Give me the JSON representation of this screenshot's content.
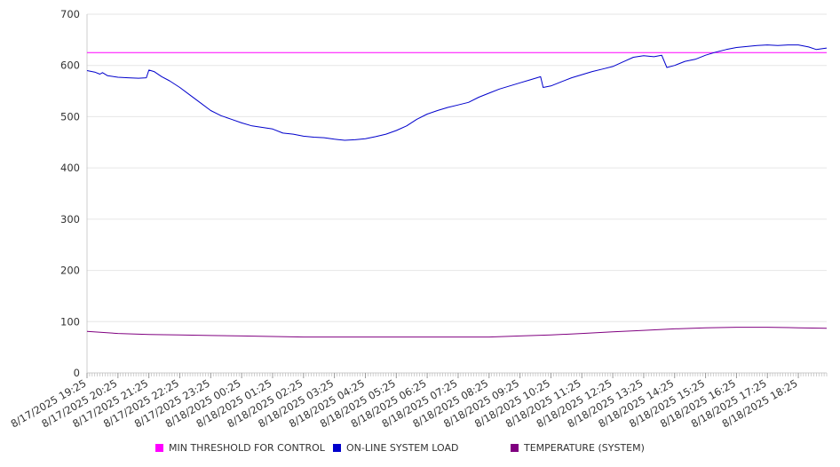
{
  "chart_data": {
    "type": "line",
    "ylim": [
      0,
      700
    ],
    "yticks": [
      0,
      100,
      200,
      300,
      400,
      500,
      600,
      700
    ],
    "grid": true,
    "legend_position": "bottom",
    "xlabel": "",
    "ylabel": "",
    "x_tick_labels": [
      "8/17/2025 19:25",
      "8/17/2025 20:25",
      "8/17/2025 21:25",
      "8/17/2025 22:25",
      "8/17/2025 23:25",
      "8/18/2025 00:25",
      "8/18/2025 01:25",
      "8/18/2025 02:25",
      "8/18/2025 03:25",
      "8/18/2025 04:25",
      "8/18/2025 05:25",
      "8/18/2025 06:25",
      "8/18/2025 07:25",
      "8/18/2025 08:25",
      "8/18/2025 09:25",
      "8/18/2025 10:25",
      "8/18/2025 11:25",
      "8/18/2025 12:25",
      "8/18/2025 13:25",
      "8/18/2025 14:25",
      "8/18/2025 15:25",
      "8/18/2025 16:25",
      "8/18/2025 17:25",
      "8/18/2025 18:25"
    ],
    "x_end": "8/18/2025 19:20",
    "series": [
      {
        "name": "MIN THRESHOLD FOR CONTROL",
        "color": "#ff00ff",
        "points": [
          [
            "8/17/2025 19:25",
            625
          ],
          [
            "8/18/2025 19:20",
            625
          ]
        ]
      },
      {
        "name": "ON-LINE SYSTEM LOAD",
        "color": "#0000cc",
        "points": [
          [
            "8/17/2025 19:25",
            590
          ],
          [
            "8/17/2025 19:40",
            587
          ],
          [
            "8/17/2025 19:50",
            583
          ],
          [
            "8/17/2025 19:55",
            586
          ],
          [
            "8/17/2025 20:05",
            580
          ],
          [
            "8/17/2025 20:25",
            577
          ],
          [
            "8/17/2025 20:45",
            576
          ],
          [
            "8/17/2025 21:05",
            575
          ],
          [
            "8/17/2025 21:20",
            576
          ],
          [
            "8/17/2025 21:25",
            591
          ],
          [
            "8/17/2025 21:35",
            588
          ],
          [
            "8/17/2025 21:50",
            578
          ],
          [
            "8/17/2025 22:05",
            570
          ],
          [
            "8/17/2025 22:25",
            557
          ],
          [
            "8/17/2025 22:45",
            542
          ],
          [
            "8/17/2025 23:05",
            527
          ],
          [
            "8/17/2025 23:25",
            512
          ],
          [
            "8/17/2025 23:45",
            502
          ],
          [
            "8/18/2025 00:05",
            495
          ],
          [
            "8/18/2025 00:25",
            488
          ],
          [
            "8/18/2025 00:45",
            482
          ],
          [
            "8/18/2025 01:05",
            479
          ],
          [
            "8/18/2025 01:25",
            476
          ],
          [
            "8/18/2025 01:45",
            468
          ],
          [
            "8/18/2025 02:05",
            466
          ],
          [
            "8/18/2025 02:25",
            462
          ],
          [
            "8/18/2025 02:45",
            460
          ],
          [
            "8/18/2025 03:05",
            459
          ],
          [
            "8/18/2025 03:25",
            456
          ],
          [
            "8/18/2025 03:45",
            454
          ],
          [
            "8/18/2025 04:05",
            455
          ],
          [
            "8/18/2025 04:25",
            457
          ],
          [
            "8/18/2025 04:45",
            461
          ],
          [
            "8/18/2025 05:05",
            466
          ],
          [
            "8/18/2025 05:25",
            473
          ],
          [
            "8/18/2025 05:45",
            482
          ],
          [
            "8/18/2025 06:05",
            495
          ],
          [
            "8/18/2025 06:25",
            505
          ],
          [
            "8/18/2025 06:45",
            512
          ],
          [
            "8/18/2025 07:05",
            518
          ],
          [
            "8/18/2025 07:25",
            523
          ],
          [
            "8/18/2025 07:45",
            528
          ],
          [
            "8/18/2025 08:05",
            538
          ],
          [
            "8/18/2025 08:25",
            546
          ],
          [
            "8/18/2025 08:45",
            554
          ],
          [
            "8/18/2025 09:05",
            560
          ],
          [
            "8/18/2025 09:25",
            566
          ],
          [
            "8/18/2025 09:45",
            572
          ],
          [
            "8/18/2025 10:05",
            578
          ],
          [
            "8/18/2025 10:10",
            557
          ],
          [
            "8/18/2025 10:25",
            560
          ],
          [
            "8/18/2025 10:45",
            568
          ],
          [
            "8/18/2025 11:05",
            576
          ],
          [
            "8/18/2025 11:25",
            582
          ],
          [
            "8/18/2025 11:45",
            588
          ],
          [
            "8/18/2025 12:05",
            593
          ],
          [
            "8/18/2025 12:25",
            598
          ],
          [
            "8/18/2025 12:45",
            607
          ],
          [
            "8/18/2025 13:05",
            616
          ],
          [
            "8/18/2025 13:25",
            619
          ],
          [
            "8/18/2025 13:45",
            617
          ],
          [
            "8/18/2025 14:00",
            620
          ],
          [
            "8/18/2025 14:10",
            596
          ],
          [
            "8/18/2025 14:25",
            600
          ],
          [
            "8/18/2025 14:45",
            608
          ],
          [
            "8/18/2025 15:05",
            612
          ],
          [
            "8/18/2025 15:25",
            620
          ],
          [
            "8/18/2025 15:45",
            626
          ],
          [
            "8/18/2025 16:05",
            631
          ],
          [
            "8/18/2025 16:25",
            635
          ],
          [
            "8/18/2025 16:45",
            637
          ],
          [
            "8/18/2025 17:05",
            639
          ],
          [
            "8/18/2025 17:25",
            640
          ],
          [
            "8/18/2025 17:45",
            639
          ],
          [
            "8/18/2025 18:05",
            640
          ],
          [
            "8/18/2025 18:25",
            640
          ],
          [
            "8/18/2025 18:45",
            636
          ],
          [
            "8/18/2025 19:00",
            631
          ],
          [
            "8/18/2025 19:20",
            634
          ]
        ]
      },
      {
        "name": "TEMPERATURE (SYSTEM)",
        "color": "#800080",
        "points": [
          [
            "8/17/2025 19:25",
            81
          ],
          [
            "8/17/2025 20:25",
            77
          ],
          [
            "8/17/2025 21:25",
            75
          ],
          [
            "8/17/2025 22:25",
            74
          ],
          [
            "8/17/2025 23:25",
            73
          ],
          [
            "8/18/2025 00:25",
            72
          ],
          [
            "8/18/2025 01:25",
            71
          ],
          [
            "8/18/2025 02:25",
            70
          ],
          [
            "8/18/2025 03:25",
            70
          ],
          [
            "8/18/2025 04:25",
            70
          ],
          [
            "8/18/2025 05:25",
            70
          ],
          [
            "8/18/2025 06:25",
            70
          ],
          [
            "8/18/2025 07:25",
            70
          ],
          [
            "8/18/2025 08:25",
            70
          ],
          [
            "8/18/2025 09:25",
            72
          ],
          [
            "8/18/2025 10:25",
            74
          ],
          [
            "8/18/2025 11:25",
            77
          ],
          [
            "8/18/2025 12:25",
            80
          ],
          [
            "8/18/2025 13:25",
            83
          ],
          [
            "8/18/2025 14:25",
            86
          ],
          [
            "8/18/2025 15:25",
            88
          ],
          [
            "8/18/2025 16:25",
            89
          ],
          [
            "8/18/2025 17:25",
            89
          ],
          [
            "8/18/2025 18:25",
            88
          ],
          [
            "8/18/2025 19:20",
            87
          ]
        ]
      }
    ]
  }
}
